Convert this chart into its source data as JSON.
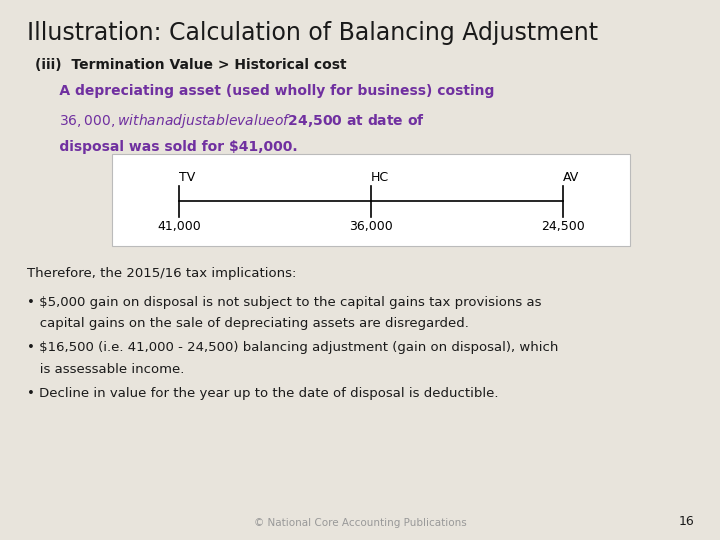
{
  "title": "Illustration: Calculation of Balancing Adjustment",
  "subtitle": "(iii)  Termination Value > Historical cost",
  "purple_text_line1": "     A depreciating asset (used wholly for business) costing",
  "purple_text_line2": "     $36,000, with an adjustable value of $24,500 at date of",
  "purple_text_line3": "     disposal was sold for $41,000.",
  "diagram": {
    "labels_top": [
      "TV",
      "HC",
      "AV"
    ],
    "labels_bottom": [
      "41,000",
      "36,000",
      "24,500"
    ],
    "positions": [
      0.13,
      0.5,
      0.87
    ]
  },
  "bullet1": "Therefore, the 2015/16 tax implications:",
  "bullet2_line1": "• $5,000 gain on disposal is not subject to the capital gains tax provisions as",
  "bullet2_line2": "   capital gains on the sale of depreciating assets are disregarded.",
  "bullet3_line1": "• $16,500 (i.e. 41,000 - 24,500) balancing adjustment (gain on disposal), which",
  "bullet3_line2": "   is assessable income.",
  "bullet4": "• Decline in value for the year up to the date of disposal is deductible.",
  "footer": "© National Core Accounting Publications",
  "page_number": "16",
  "bg_color": "#e8e4dc",
  "diagram_bg": "#ffffff",
  "diagram_border": "#bbbbbb",
  "title_color": "#1a1a1a",
  "subtitle_color": "#1a1a1a",
  "purple_color": "#7030a0",
  "body_color": "#1a1a1a",
  "footer_color": "#999999",
  "title_fontsize": 17,
  "subtitle_fontsize": 10,
  "purple_fontsize": 10,
  "body_fontsize": 9.5,
  "diagram_fontsize": 9,
  "footer_fontsize": 7.5
}
